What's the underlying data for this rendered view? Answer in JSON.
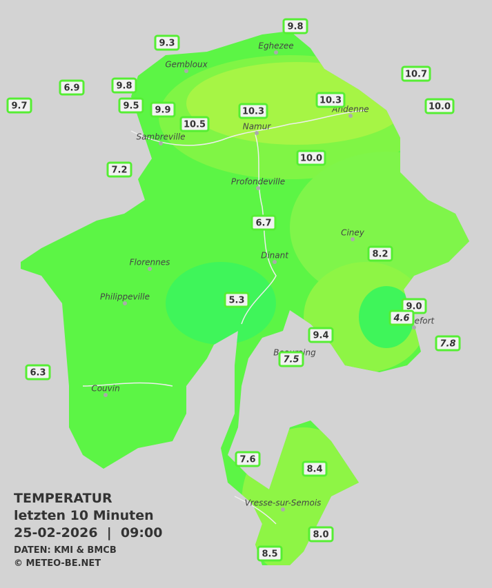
{
  "towns": [
    "Eghezee",
    "Gembloux",
    "Andenne",
    "Namur",
    "Sambreville",
    "Profondeville",
    "Ciney",
    "Dinant",
    "Florennes",
    "Philippeville",
    "Rochefort",
    "Beauraing",
    "Couvin",
    "Vresse-sur-Semois"
  ],
  "stations": [
    {
      "value": "9.8"
    },
    {
      "value": "9.3"
    },
    {
      "value": "6.9"
    },
    {
      "value": "9.8"
    },
    {
      "value": "10.7"
    },
    {
      "value": "9.7"
    },
    {
      "value": "9.5"
    },
    {
      "value": "9.9"
    },
    {
      "value": "10.3"
    },
    {
      "value": "10.3"
    },
    {
      "value": "10.0"
    },
    {
      "value": "10.5"
    },
    {
      "value": "10.0"
    },
    {
      "value": "7.2"
    },
    {
      "value": "6.7"
    },
    {
      "value": "8.2"
    },
    {
      "value": "5.3"
    },
    {
      "value": "9.0"
    },
    {
      "value": "4.6"
    },
    {
      "value": "9.4"
    },
    {
      "value": "7.8"
    },
    {
      "value": "7.5"
    },
    {
      "value": "6.3"
    },
    {
      "value": "7.6"
    },
    {
      "value": "8.4"
    },
    {
      "value": "8.0"
    },
    {
      "value": "8.5"
    }
  ],
  "legend": {
    "title": "TEMPERATUR",
    "period": "letzten 10 Minuten",
    "datetime": "25-02-2026  |  09:00",
    "source": "DATEN: KMI & BMCB",
    "copyright": "© METEO-BE.NET"
  }
}
